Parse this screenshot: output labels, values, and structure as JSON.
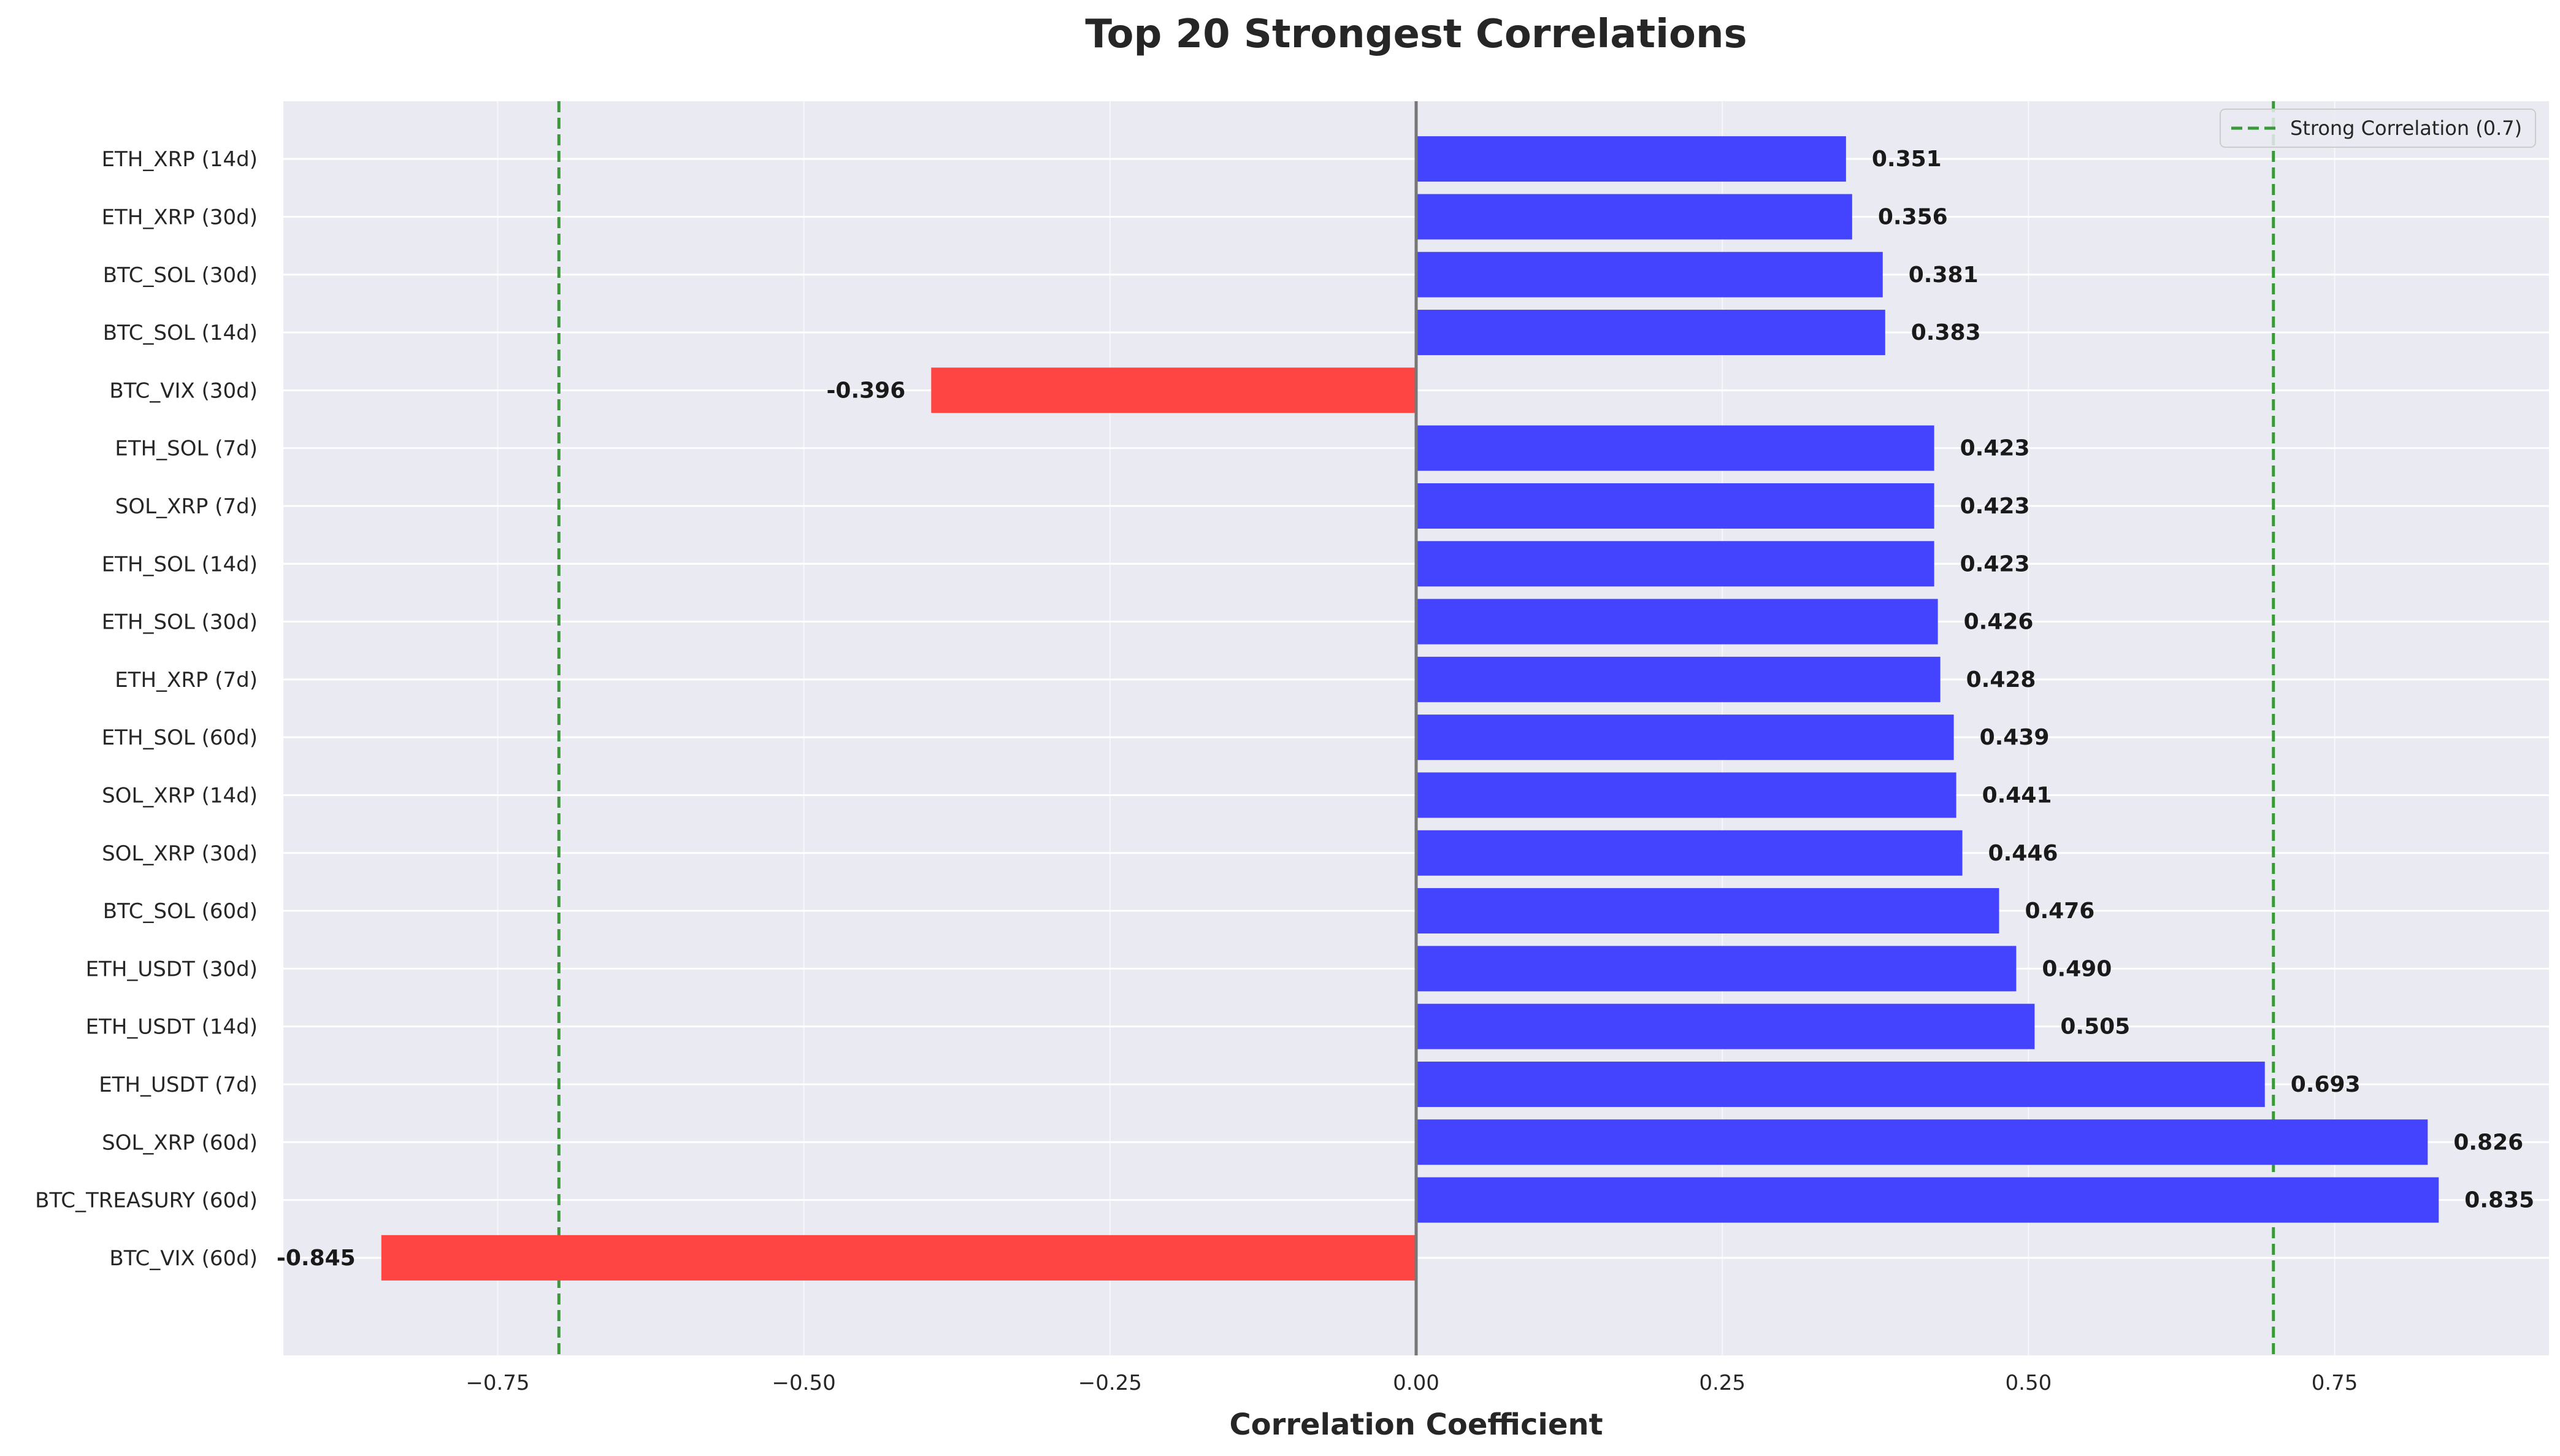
{
  "chart_data": {
    "type": "bar",
    "orientation": "horizontal",
    "title": "Top 20 Strongest Correlations",
    "xlabel": "Correlation Coefficient",
    "ylabel": "",
    "xlim": [
      -0.925,
      0.925
    ],
    "xticks": [
      -0.75,
      -0.5,
      -0.25,
      0.0,
      0.25,
      0.5,
      0.75
    ],
    "xtick_labels": [
      "−0.75",
      "−0.50",
      "−0.25",
      "0.00",
      "0.25",
      "0.50",
      "0.75"
    ],
    "grid": true,
    "categories": [
      "ETH_XRP (14d)",
      "ETH_XRP (30d)",
      "BTC_SOL (30d)",
      "BTC_SOL (14d)",
      "BTC_VIX (30d)",
      "ETH_SOL (7d)",
      "SOL_XRP (7d)",
      "ETH_SOL (14d)",
      "ETH_SOL (30d)",
      "ETH_XRP (7d)",
      "ETH_SOL (60d)",
      "SOL_XRP (14d)",
      "SOL_XRP (30d)",
      "BTC_SOL (60d)",
      "ETH_USDT (30d)",
      "ETH_USDT (14d)",
      "ETH_USDT (7d)",
      "SOL_XRP (60d)",
      "BTC_TREASURY (60d)",
      "BTC_VIX (60d)"
    ],
    "values": [
      0.351,
      0.356,
      0.381,
      0.383,
      -0.396,
      0.423,
      0.423,
      0.423,
      0.426,
      0.428,
      0.439,
      0.441,
      0.446,
      0.476,
      0.49,
      0.505,
      0.693,
      0.826,
      0.835,
      -0.845
    ],
    "value_labels": [
      "0.351",
      "0.356",
      "0.381",
      "0.383",
      "-0.396",
      "0.423",
      "0.423",
      "0.423",
      "0.426",
      "0.428",
      "0.439",
      "0.441",
      "0.446",
      "0.476",
      "0.490",
      "0.505",
      "0.693",
      "0.826",
      "0.835",
      "-0.845"
    ],
    "positive_color": "#4444ff",
    "negative_color": "#ff4444",
    "reference_lines": [
      {
        "value": 0.7,
        "color": "#3a9a3a",
        "style": "dashed"
      },
      {
        "value": -0.7,
        "color": "#3a9a3a",
        "style": "dashed"
      }
    ],
    "zero_line_color": "#777777",
    "legend": {
      "placement": "top-right",
      "entries": [
        {
          "label": "Strong Correlation (0.7)",
          "color": "#3a9a3a",
          "style": "dashed"
        }
      ]
    },
    "plot_background": "#eaeaf2",
    "grid_color": "#ffffff"
  }
}
